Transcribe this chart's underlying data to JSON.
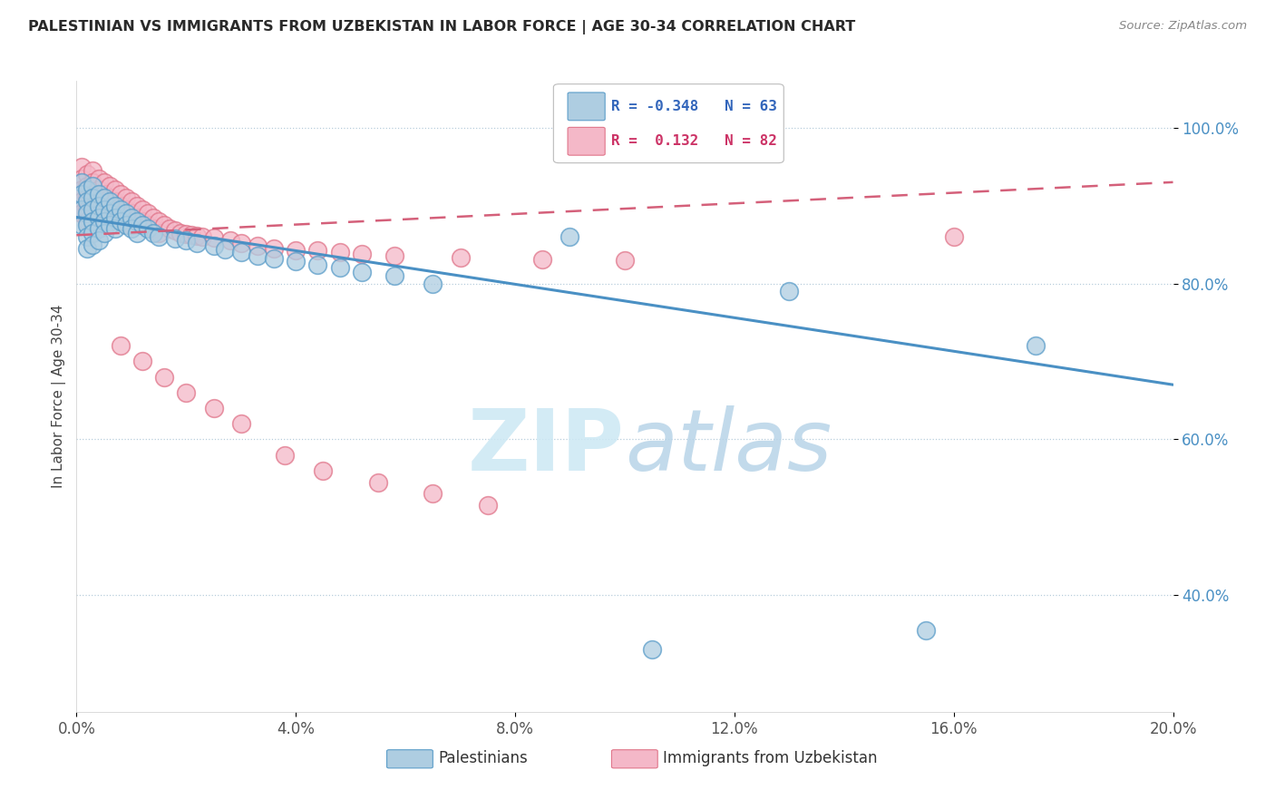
{
  "title": "PALESTINIAN VS IMMIGRANTS FROM UZBEKISTAN IN LABOR FORCE | AGE 30-34 CORRELATION CHART",
  "source": "Source: ZipAtlas.com",
  "ylabel": "In Labor Force | Age 30-34",
  "xlim": [
    0.0,
    0.2
  ],
  "ylim": [
    0.25,
    1.06
  ],
  "xticks": [
    0.0,
    0.04,
    0.08,
    0.12,
    0.16,
    0.2
  ],
  "yticks": [
    0.4,
    0.6,
    0.8,
    1.0
  ],
  "ytick_labels": [
    "40.0%",
    "60.0%",
    "80.0%",
    "100.0%"
  ],
  "xtick_labels": [
    "0.0%",
    "4.0%",
    "8.0%",
    "12.0%",
    "16.0%",
    "20.0%"
  ],
  "legend_blue_r": "-0.348",
  "legend_blue_n": "63",
  "legend_pink_r": "0.132",
  "legend_pink_n": "82",
  "blue_color": "#aecde1",
  "pink_color": "#f4b8c8",
  "blue_edge_color": "#5b9dc9",
  "pink_edge_color": "#e0758a",
  "blue_line_color": "#4a90c4",
  "pink_line_color": "#d4607a",
  "watermark_color": "#cce8f4",
  "background_color": "#ffffff",
  "blue_trend_x": [
    0.0,
    0.2
  ],
  "blue_trend_y": [
    0.885,
    0.67
  ],
  "pink_trend_x": [
    0.0,
    0.2
  ],
  "pink_trend_y": [
    0.862,
    0.93
  ]
}
